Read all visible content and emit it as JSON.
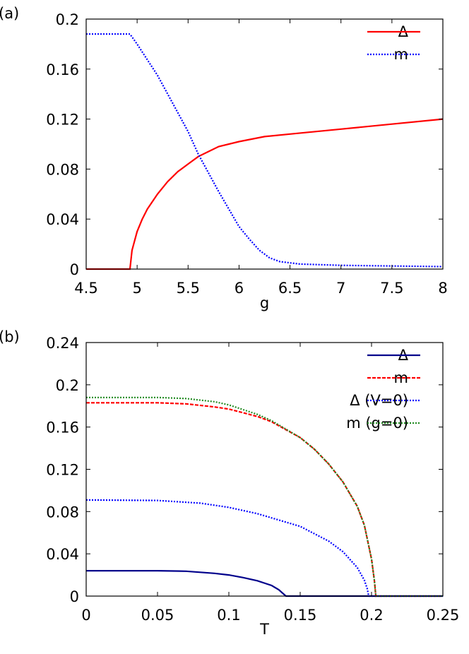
{
  "chart_data": [
    {
      "type": "line",
      "panel_label": "(a)",
      "xlabel": "g",
      "ylabel": "",
      "xlim": [
        4.5,
        8
      ],
      "ylim": [
        0,
        0.2
      ],
      "xticks": [
        "4.5",
        "5",
        "5.5",
        "6",
        "6.5",
        "7",
        "7.5",
        "8"
      ],
      "yticks": [
        "0",
        "0.04",
        "0.08",
        "0.12",
        "0.16",
        "0.2"
      ],
      "legend_position": "top-right",
      "grid": false,
      "series": [
        {
          "name": "Δ",
          "color": "#ff0000",
          "style": "solid",
          "x": [
            4.5,
            4.93,
            4.95,
            5.0,
            5.05,
            5.1,
            5.2,
            5.3,
            5.4,
            5.5,
            5.6,
            5.7,
            5.8,
            6.0,
            6.25,
            6.5,
            7.0,
            7.5,
            8.0
          ],
          "y": [
            0,
            0,
            0.015,
            0.03,
            0.04,
            0.048,
            0.06,
            0.07,
            0.078,
            0.084,
            0.09,
            0.094,
            0.098,
            0.102,
            0.106,
            0.108,
            0.112,
            0.116,
            0.12
          ]
        },
        {
          "name": "m",
          "color": "#0000ff",
          "style": "dotted",
          "x": [
            4.5,
            4.93,
            5.0,
            5.2,
            5.4,
            5.5,
            5.6,
            5.8,
            6.0,
            6.1,
            6.2,
            6.3,
            6.4,
            6.6,
            7.0,
            7.5,
            8.0
          ],
          "y": [
            0.188,
            0.188,
            0.18,
            0.155,
            0.125,
            0.11,
            0.092,
            0.062,
            0.034,
            0.024,
            0.015,
            0.009,
            0.006,
            0.004,
            0.003,
            0.0025,
            0.002
          ]
        }
      ]
    },
    {
      "type": "line",
      "panel_label": "(b)",
      "xlabel": "T",
      "ylabel": "",
      "xlim": [
        0,
        0.25
      ],
      "ylim": [
        0,
        0.24
      ],
      "xticks": [
        "0",
        "0.05",
        "0.1",
        "0.15",
        "0.2",
        "0.25"
      ],
      "yticks": [
        "0",
        "0.04",
        "0.08",
        "0.12",
        "0.16",
        "0.2",
        "0.24"
      ],
      "legend_position": "top-right",
      "grid": false,
      "series": [
        {
          "name": "Δ",
          "color": "#00008b",
          "style": "solid",
          "x": [
            0,
            0.05,
            0.07,
            0.09,
            0.1,
            0.11,
            0.12,
            0.13,
            0.135,
            0.14,
            0.25
          ],
          "y": [
            0.024,
            0.024,
            0.0235,
            0.0215,
            0.02,
            0.0175,
            0.0145,
            0.01,
            0.006,
            0,
            0
          ]
        },
        {
          "name": "m",
          "color": "#ff0000",
          "style": "dashed",
          "x": [
            0,
            0.05,
            0.07,
            0.09,
            0.1,
            0.12,
            0.13,
            0.15,
            0.16,
            0.17,
            0.18,
            0.19,
            0.195,
            0.2,
            0.202,
            0.203,
            0.25
          ],
          "y": [
            0.183,
            0.183,
            0.182,
            0.179,
            0.177,
            0.17,
            0.165,
            0.15,
            0.139,
            0.125,
            0.108,
            0.085,
            0.067,
            0.035,
            0.015,
            0,
            0
          ]
        },
        {
          "name": "Δ (V=0)",
          "color": "#0000ff",
          "style": "dotted",
          "x": [
            0,
            0.05,
            0.08,
            0.1,
            0.12,
            0.15,
            0.17,
            0.18,
            0.19,
            0.195,
            0.197,
            0.198,
            0.25
          ],
          "y": [
            0.091,
            0.0905,
            0.088,
            0.084,
            0.078,
            0.066,
            0.052,
            0.042,
            0.027,
            0.015,
            0.007,
            0,
            0
          ]
        },
        {
          "name": "m (g=0)",
          "color": "#228b22",
          "style": "dotted",
          "x": [
            0,
            0.05,
            0.07,
            0.09,
            0.1,
            0.12,
            0.13,
            0.15,
            0.16,
            0.17,
            0.18,
            0.19,
            0.195,
            0.2,
            0.202,
            0.203,
            0.25
          ],
          "y": [
            0.188,
            0.188,
            0.187,
            0.184,
            0.181,
            0.172,
            0.166,
            0.15,
            0.139,
            0.125,
            0.108,
            0.085,
            0.067,
            0.035,
            0.015,
            0,
            0
          ]
        }
      ]
    }
  ]
}
